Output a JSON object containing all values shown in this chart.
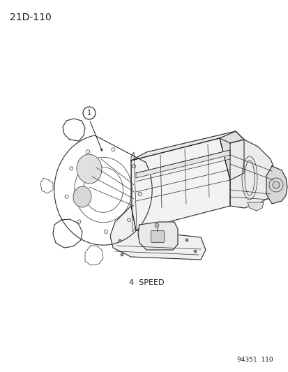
{
  "page_id": "21D-110",
  "figure_label": "4  SPEED",
  "part_number_ref": "94351  110",
  "callout_number": "1",
  "background_color": "#ffffff",
  "line_color": "#2a2a2a",
  "text_color": "#1a1a1a",
  "page_id_fontsize": 10,
  "label_fontsize": 8,
  "callout_fontsize": 7,
  "part_ref_fontsize": 6.5,
  "fig_width": 4.14,
  "fig_height": 5.33,
  "dpi": 100
}
